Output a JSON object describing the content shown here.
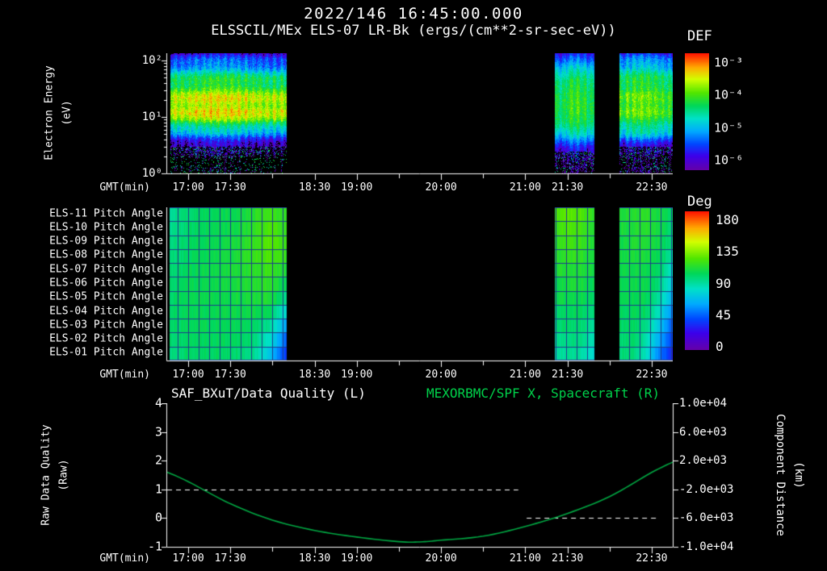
{
  "page": {
    "background": "#000000",
    "text_color": "#ffffff",
    "green_title": "#00d24b",
    "green_curve": "#00a843",
    "pitch_grid_color": "#1e3c8c",
    "colormap_stops": [
      [
        0.0,
        100,
        0,
        170
      ],
      [
        0.12,
        60,
        0,
        235
      ],
      [
        0.22,
        0,
        70,
        255
      ],
      [
        0.33,
        0,
        170,
        255
      ],
      [
        0.44,
        0,
        225,
        200
      ],
      [
        0.55,
        0,
        215,
        90
      ],
      [
        0.66,
        80,
        230,
        0
      ],
      [
        0.78,
        210,
        255,
        0
      ],
      [
        0.88,
        255,
        170,
        0
      ],
      [
        1.0,
        255,
        20,
        0
      ]
    ]
  },
  "header": {
    "datetime": "2022/146 16:45:00.000",
    "title": "ELSSCIL/MEx ELS-07 LR-Bk (ergs/(cm**2-sr-sec-eV))"
  },
  "chart_data": [
    {
      "type": "heatmap",
      "title": "ELSSCIL/MEx ELS-07 LR-Bk (ergs/(cm**2-sr-sec-eV))",
      "xlabel": "GMT(min)",
      "ylabel_lines": [
        "Electron Energy",
        "(eV)"
      ],
      "y_scale": "log",
      "ylim_ev": [
        1,
        135
      ],
      "ytick_values": [
        1,
        10,
        100
      ],
      "ytick_labels": [
        "10⁰",
        "10¹",
        "10²"
      ],
      "x_start_time": "16:45",
      "x_span_min": 360,
      "x_ticks": [
        {
          "min": 15,
          "label": "17:00"
        },
        {
          "min": 45,
          "label": "17:30"
        },
        {
          "min": 75,
          "label": ""
        },
        {
          "min": 105,
          "label": "18:30"
        },
        {
          "min": 135,
          "label": "19:00"
        },
        {
          "min": 165,
          "label": ""
        },
        {
          "min": 195,
          "label": "20:00"
        },
        {
          "min": 225,
          "label": ""
        },
        {
          "min": 255,
          "label": "21:00"
        },
        {
          "min": 285,
          "label": "21:30"
        },
        {
          "min": 315,
          "label": ""
        },
        {
          "min": 345,
          "label": "22:30"
        }
      ],
      "colorbar_title": "DEF",
      "colorbar_tick_labels": [
        "10⁻³",
        "10⁻⁴",
        "10⁻⁵",
        "10⁻⁶"
      ],
      "z_log10_range": [
        -6,
        -3
      ],
      "units": "ergs/(cm**2-sr-sec-eV)",
      "segments": [
        {
          "t_start_min": 2,
          "t_end_min": 85,
          "energy_ev": [
            1,
            2,
            3,
            4.5,
            6.5,
            9,
            13,
            20,
            30,
            45,
            65,
            90,
            135
          ],
          "log10_flux": [
            -6.5,
            -6.2,
            -5.9,
            -5.45,
            -4.75,
            -4.0,
            -3.75,
            -3.78,
            -4.1,
            -4.45,
            -4.85,
            -5.3,
            -5.85
          ],
          "noise": 0.27,
          "speckle_below_ev": 3,
          "banding": 0.13,
          "flare": {
            "t": 35,
            "w": 18,
            "amp": 0.22
          }
        },
        {
          "t_start_min": 276,
          "t_end_min": 304,
          "energy_ev": [
            1,
            3,
            5,
            8,
            14,
            25,
            45,
            70,
            100,
            135
          ],
          "log10_flux": [
            -6.2,
            -5.7,
            -4.9,
            -4.5,
            -4.35,
            -4.4,
            -4.55,
            -4.9,
            -5.3,
            -5.7
          ],
          "noise": 0.2,
          "speckle_below_ev": 2.5,
          "banding": 0,
          "flare": {
            "t": 290,
            "w": 5,
            "amp": 0.3
          }
        },
        {
          "t_start_min": 322,
          "t_end_min": 360,
          "energy_ev": [
            1,
            3,
            5,
            8,
            13,
            22,
            38,
            60,
            90,
            135
          ],
          "log10_flux": [
            -6.25,
            -5.85,
            -5.0,
            -4.45,
            -4.15,
            -4.2,
            -4.35,
            -4.65,
            -5.1,
            -5.6
          ],
          "noise": 0.25,
          "speckle_below_ev": 3,
          "banding": 0.08,
          "flare": {
            "t": 338,
            "w": 8,
            "amp": 0.25
          }
        }
      ]
    },
    {
      "type": "heatmap",
      "xlabel": "GMT(min)",
      "rows": [
        "ELS-11 Pitch Angle",
        "ELS-10 Pitch Angle",
        "ELS-09 Pitch Angle",
        "ELS-08 Pitch Angle",
        "ELS-07 Pitch Angle",
        "ELS-06 Pitch Angle",
        "ELS-05 Pitch Angle",
        "ELS-04 Pitch Angle",
        "ELS-03 Pitch Angle",
        "ELS-02 Pitch Angle",
        "ELS-01 Pitch Angle"
      ],
      "colorbar_title": "Deg",
      "colorbar_tick_labels": [
        "180",
        "135",
        "90",
        "45",
        "0"
      ],
      "zlim_deg": [
        0,
        180
      ],
      "x_ticks": [
        {
          "min": 15,
          "label": "17:00"
        },
        {
          "min": 45,
          "label": "17:30"
        },
        {
          "min": 75,
          "label": ""
        },
        {
          "min": 105,
          "label": "18:30"
        },
        {
          "min": 135,
          "label": "19:00"
        },
        {
          "min": 165,
          "label": ""
        },
        {
          "min": 195,
          "label": "20:00"
        },
        {
          "min": 225,
          "label": ""
        },
        {
          "min": 255,
          "label": "21:00"
        },
        {
          "min": 285,
          "label": "21:30"
        },
        {
          "min": 315,
          "label": ""
        },
        {
          "min": 345,
          "label": "22:30"
        }
      ],
      "segments": [
        {
          "t_start_min": 2,
          "t_end_min": 85,
          "row_values_deg": [
            [
              85,
              95,
              98,
              100,
              102,
              108,
              116,
              110
            ],
            [
              88,
              96,
              99,
              101,
              103,
              110,
              118,
              112
            ],
            [
              90,
              97,
              100,
              102,
              105,
              112,
              120,
              114
            ],
            [
              92,
              98,
              100,
              103,
              106,
              112,
              118,
              111
            ],
            [
              94,
              99,
              101,
              103,
              106,
              110,
              114,
              106
            ],
            [
              95,
              100,
              101,
              103,
              105,
              108,
              111,
              99
            ],
            [
              96,
              100,
              101,
              102,
              104,
              106,
              107,
              89
            ],
            [
              96,
              100,
              100,
              101,
              102,
              103,
              99,
              74
            ],
            [
              95,
              99,
              100,
              100,
              100,
              98,
              89,
              59
            ],
            [
              94,
              98,
              99,
              99,
              98,
              94,
              79,
              45
            ],
            [
              92,
              97,
              98,
              98,
              96,
              90,
              69,
              35
            ]
          ]
        },
        {
          "t_start_min": 276,
          "t_end_min": 304,
          "row_values_deg": [
            [
              116,
              121,
              118,
              110
            ],
            [
              113,
              118,
              116,
              108
            ],
            [
              111,
              115,
              113,
              106
            ],
            [
              108,
              112,
              110,
              104
            ],
            [
              105,
              109,
              107,
              102
            ],
            [
              102,
              106,
              104,
              100
            ],
            [
              100,
              103,
              101,
              97
            ],
            [
              97,
              99,
              98,
              93
            ],
            [
              94,
              96,
              95,
              88
            ],
            [
              90,
              92,
              91,
              82
            ],
            [
              86,
              88,
              87,
              76
            ]
          ]
        },
        {
          "t_start_min": 322,
          "t_end_min": 360,
          "row_values_deg": [
            [
              105,
              108,
              110,
              105,
              95
            ],
            [
              104,
              107,
              109,
              104,
              93
            ],
            [
              103,
              106,
              108,
              103,
              90
            ],
            [
              102,
              105,
              106,
              100,
              85
            ],
            [
              101,
              104,
              104,
              97,
              80
            ],
            [
              100,
              102,
              102,
              93,
              72
            ],
            [
              99,
              101,
              100,
              88,
              62
            ],
            [
              98,
              100,
              97,
              80,
              52
            ],
            [
              97,
              98,
              92,
              70,
              45
            ],
            [
              95,
              96,
              86,
              60,
              38
            ],
            [
              93,
              94,
              80,
              52,
              32
            ]
          ]
        }
      ]
    },
    {
      "type": "line",
      "title_left": "SAF_BXuT/Data Quality (L)",
      "title_right": "MEXORBMC/SPF X, Spacecraft (R)",
      "xlabel": "GMT(min)",
      "ylabel_left_lines": [
        "Raw Data Quality",
        "(Raw)"
      ],
      "ylim_left": [
        -1,
        4
      ],
      "ytick_labels_left": [
        "4",
        "3",
        "2",
        "1",
        "0",
        "-1"
      ],
      "ylabel_right_lines": [
        "Component Distance",
        "(km)"
      ],
      "ylim_right": [
        -10000,
        10000
      ],
      "ytick_labels_right": [
        "1.0e+04",
        "6.0e+03",
        "2.0e+03",
        "-2.0e+03",
        "-6.0e+03",
        "-1.0e+04"
      ],
      "x_ticks": [
        {
          "min": 15,
          "label": "17:00"
        },
        {
          "min": 45,
          "label": "17:30"
        },
        {
          "min": 75,
          "label": ""
        },
        {
          "min": 105,
          "label": "18:30"
        },
        {
          "min": 135,
          "label": "19:00"
        },
        {
          "min": 165,
          "label": ""
        },
        {
          "min": 195,
          "label": "20:00"
        },
        {
          "min": 225,
          "label": ""
        },
        {
          "min": 255,
          "label": "21:00"
        },
        {
          "min": 285,
          "label": "21:30"
        },
        {
          "min": 315,
          "label": ""
        },
        {
          "min": 345,
          "label": "22:30"
        }
      ],
      "series": [
        {
          "name": "SAF_BXuT/Data Quality",
          "axis": "left",
          "color": "#ffffff",
          "style": "dashed",
          "segments": [
            {
              "t_min": [
                0,
                250
              ],
              "values": [
                1,
                1
              ]
            },
            {
              "t_min": [
                256,
                350
              ],
              "values": [
                0,
                0
              ]
            }
          ]
        },
        {
          "name": "MEXORBMC/SPF X, Spacecraft",
          "axis": "right",
          "color": "#00a843",
          "style": "solid",
          "t_min": [
            0,
            15,
            45,
            75,
            105,
            135,
            165,
            180,
            195,
            225,
            255,
            285,
            315,
            345,
            360
          ],
          "values_km": [
            400,
            -920,
            -4000,
            -6280,
            -7720,
            -8640,
            -9280,
            -9320,
            -9080,
            -8520,
            -7160,
            -5360,
            -3000,
            360,
            1800
          ]
        }
      ]
    }
  ]
}
